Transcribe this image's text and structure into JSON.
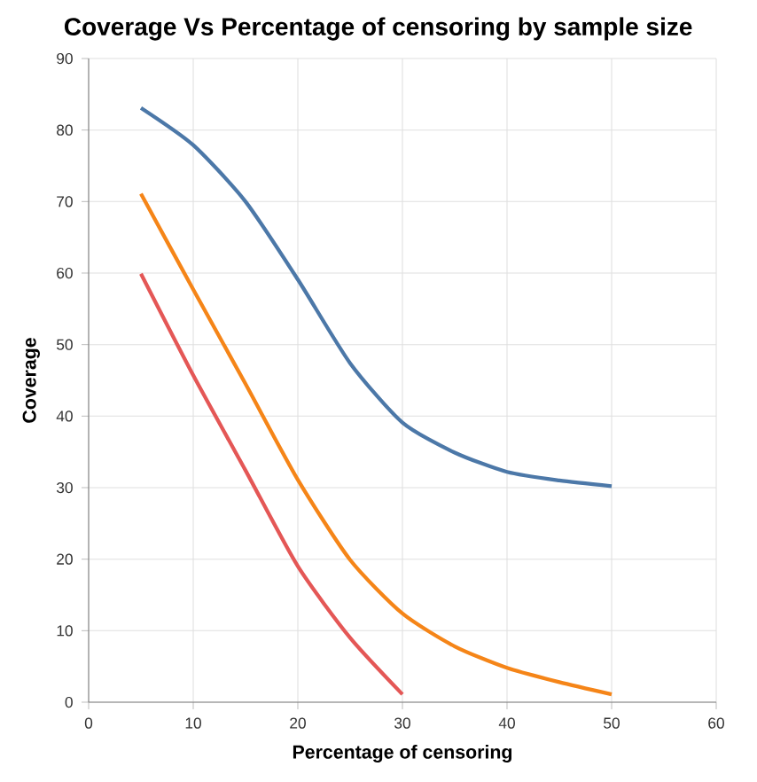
{
  "chart_data": {
    "type": "line",
    "title": "Coverage Vs Percentage of censoring by sample size",
    "xlabel": "Percentage of censoring",
    "ylabel": "Coverage",
    "xlim": [
      0,
      60
    ],
    "ylim": [
      0,
      90
    ],
    "xticks": [
      0,
      10,
      20,
      30,
      40,
      50,
      60
    ],
    "yticks": [
      0,
      10,
      20,
      30,
      40,
      50,
      60,
      70,
      80,
      90
    ],
    "grid": true,
    "series": [
      {
        "color": "#4c78a8",
        "x": [
          5,
          10,
          15,
          20,
          25,
          30,
          35,
          40,
          45,
          50
        ],
        "values": [
          83.1,
          77.9,
          70,
          59.1,
          47.4,
          39.1,
          34.9,
          32.2,
          31,
          30.2
        ]
      },
      {
        "color": "#f58518",
        "x": [
          5,
          10,
          15,
          20,
          25,
          30,
          35,
          40,
          45,
          50
        ],
        "values": [
          71.1,
          57.7,
          44.5,
          31.1,
          19.9,
          12.4,
          7.8,
          4.8,
          2.8,
          1.1
        ]
      },
      {
        "color": "#e45756",
        "x": [
          5,
          10,
          15,
          20,
          25,
          30
        ],
        "values": [
          59.9,
          45.7,
          32.4,
          19,
          9,
          1.1
        ]
      }
    ]
  }
}
